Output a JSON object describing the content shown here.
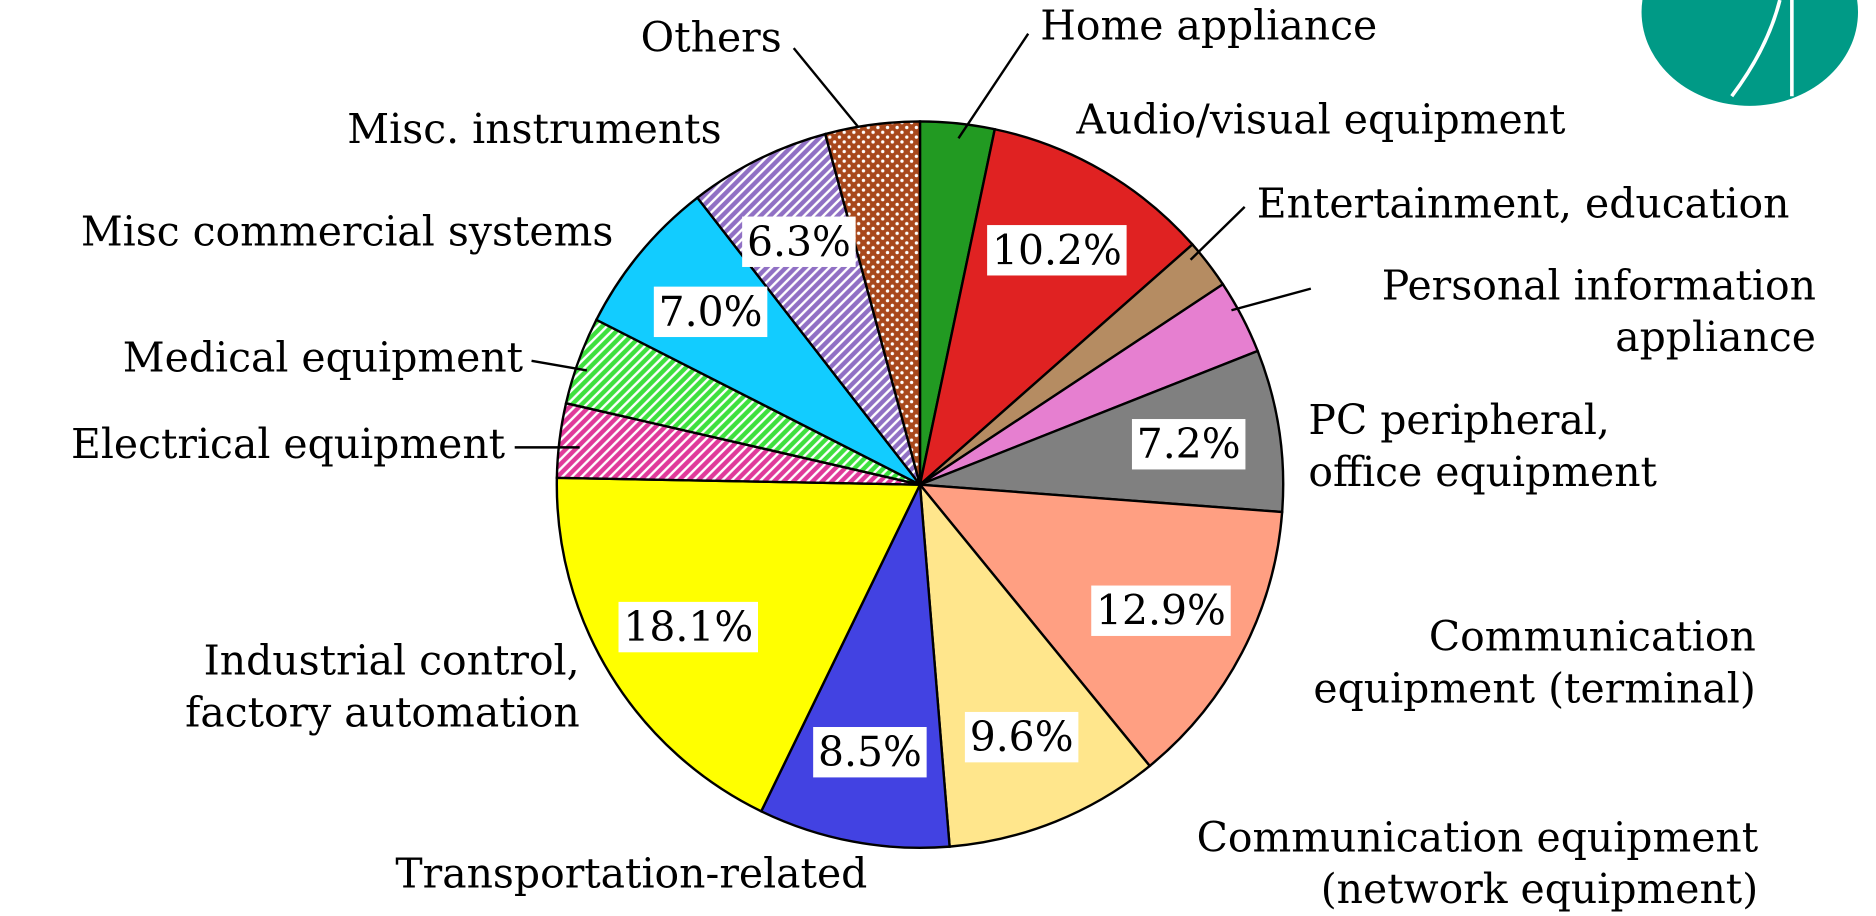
{
  "chart_data": {
    "type": "pie",
    "categories": [
      "Home appliance",
      "Audio/visual equipment",
      "Entertainment, education",
      "Personal information\nappliance",
      "PC peripheral,\noffice equipment",
      "Communication\nequipment (terminal)",
      "Communication equipment\n(network equipment)",
      "Transportation-related",
      "Industrial control,\nfactory automation",
      "Electrical equipment",
      "Medical equipment",
      "Misc commercial systems",
      "Misc. instruments",
      "Others"
    ],
    "values": [
      3.3,
      10.2,
      2.2,
      3.3,
      7.2,
      12.9,
      9.6,
      8.5,
      18.1,
      3.3,
      3.9,
      7.0,
      6.3,
      4.2
    ],
    "value_labels": [
      null,
      "10.2%",
      null,
      null,
      "7.2%",
      "12.9%",
      "9.6%",
      "8.5%",
      "18.1%",
      null,
      null,
      "7.0%",
      "6.3%",
      null
    ],
    "colors": [
      "#229a22",
      "#e02222",
      "#b58c62",
      "#e67fd0",
      "#808080",
      "#ff9f82",
      "#ffe68c",
      "#4242e2",
      "#ffff00",
      "#e03a9a",
      "#3ee03e",
      "#12ccff",
      "#9070c4",
      "#a8481c"
    ],
    "patterns": [
      "solid",
      "solid",
      "solid",
      "solid",
      "solid",
      "solid",
      "solid",
      "solid",
      "solid",
      "hatch",
      "hatch",
      "solid",
      "hatch",
      "dots"
    ]
  }
}
